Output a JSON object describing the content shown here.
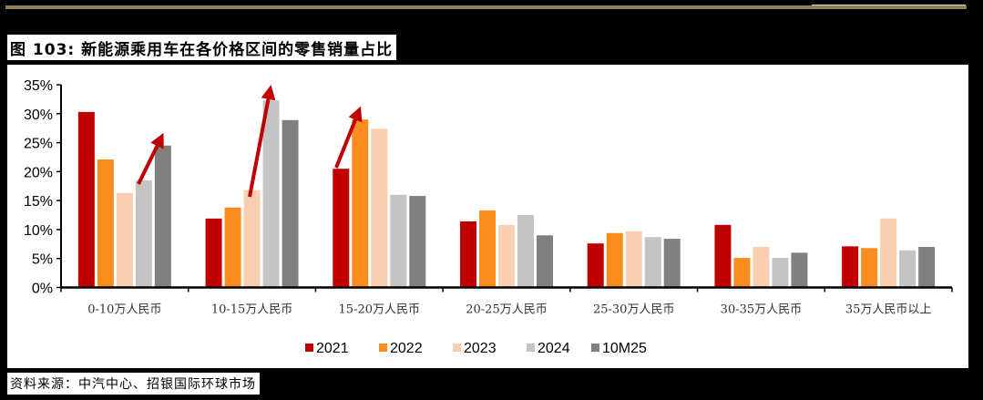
{
  "header": {
    "title": "图 103: 新能源乘用车在各价格区间的零售销量占比"
  },
  "footer": {
    "source": "资料来源：中汽中心、招银国际环球市场"
  },
  "colors": {
    "gold_rule": "#8f8250",
    "series": [
      "#c00000",
      "#f98d1f",
      "#f8cfb0",
      "#c4c4c4",
      "#808080"
    ],
    "arrow": "#c00000"
  },
  "chart_data": {
    "type": "bar",
    "title": "图 103: 新能源乘用车在各价格区间的零售销量占比",
    "xlabel": "",
    "ylabel": "",
    "ylim": [
      0,
      35
    ],
    "yticks": [
      "0%",
      "5%",
      "10%",
      "15%",
      "20%",
      "25%",
      "30%",
      "35%"
    ],
    "grid": false,
    "legend_position": "bottom",
    "categories": [
      "0-10万人民币",
      "10-15万人民币",
      "15-20万人民币",
      "20-25万人民币",
      "25-30万人民币",
      "30-35万人民币",
      "35万人民币以上"
    ],
    "series": [
      {
        "name": "2021",
        "values": [
          30.3,
          11.9,
          20.5,
          11.4,
          7.6,
          10.8,
          7.1
        ]
      },
      {
        "name": "2022",
        "values": [
          22.1,
          13.8,
          29.0,
          13.3,
          9.4,
          5.1,
          6.8
        ]
      },
      {
        "name": "2023",
        "values": [
          16.3,
          16.8,
          27.4,
          10.8,
          9.7,
          7.0,
          11.9
        ]
      },
      {
        "name": "2024",
        "values": [
          18.5,
          32.3,
          16.0,
          12.5,
          8.7,
          5.1,
          6.4
        ]
      },
      {
        "name": "10M25",
        "values": [
          24.5,
          28.9,
          15.8,
          9.0,
          8.4,
          6.0,
          7.0
        ]
      }
    ],
    "annotations": [
      {
        "type": "arrow",
        "category": "0-10万人民币",
        "from_series": "2024",
        "to_series": "10M25"
      },
      {
        "type": "arrow",
        "category": "10-15万人民币",
        "from_series": "2023",
        "to_series": "2024"
      },
      {
        "type": "arrow",
        "category": "15-20万人民币",
        "from_series": "2021",
        "to_series": "2022"
      }
    ]
  }
}
